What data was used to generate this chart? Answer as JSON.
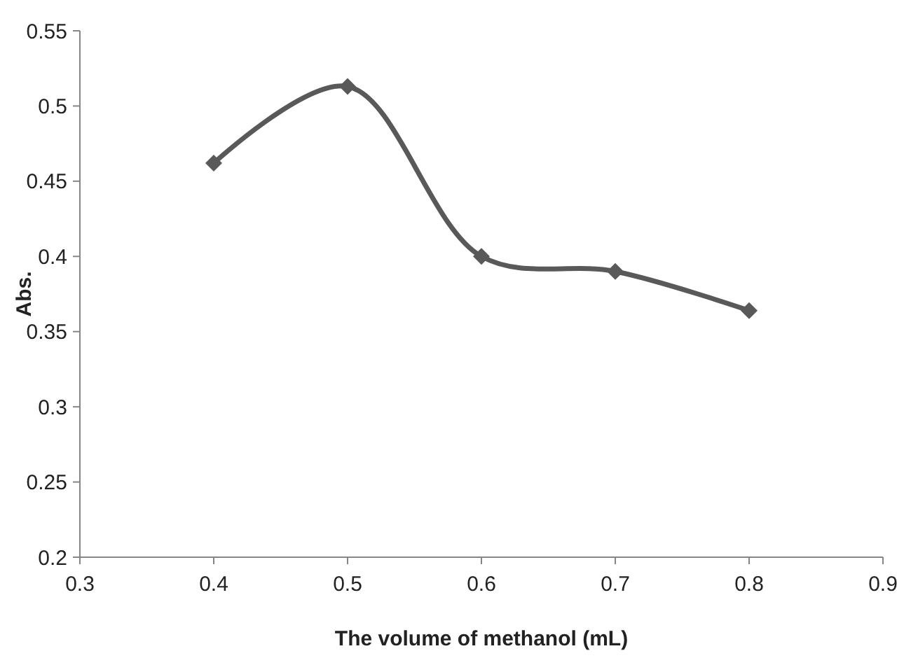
{
  "chart_data": {
    "type": "line",
    "xlabel": "The volume of methanol (mL)",
    "ylabel": "Abs.",
    "x": [
      0.4,
      0.5,
      0.6,
      0.7,
      0.8
    ],
    "series": [
      {
        "color": "#595959",
        "values": [
          0.462,
          0.513,
          0.4,
          0.39,
          0.364
        ]
      }
    ],
    "xlim": [
      0.3,
      0.9
    ],
    "xticks": [
      0.3,
      0.4,
      0.5,
      0.6,
      0.7,
      0.8,
      0.9
    ],
    "ylim": [
      0.2,
      0.55
    ],
    "yticks": [
      0.2,
      0.25,
      0.3,
      0.35,
      0.4,
      0.45,
      0.5,
      0.55
    ],
    "grid": false,
    "marker": "diamond",
    "line_style": "solid"
  }
}
